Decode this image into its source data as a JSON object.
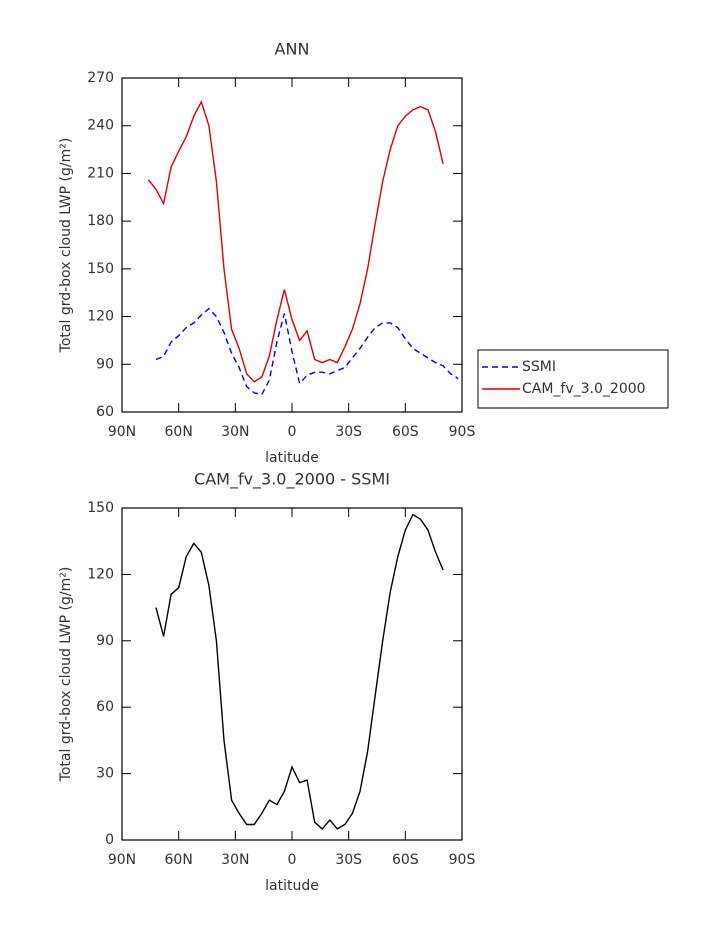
{
  "chart_data": [
    {
      "type": "line",
      "title": "ANN",
      "xlabel": "latitude",
      "ylabel": "Total grd-box cloud LWP (g/m²)",
      "x": [
        76,
        72,
        68,
        64,
        60,
        56,
        52,
        48,
        44,
        40,
        36,
        32,
        28,
        24,
        20,
        16,
        12,
        8,
        4,
        0,
        -4,
        -8,
        -12,
        -16,
        -20,
        -24,
        -28,
        -32,
        -36,
        -40,
        -44,
        -48,
        -52,
        -56,
        -60,
        -64,
        -68,
        -72,
        -76,
        -80,
        -84,
        -88
      ],
      "xlim": [
        90,
        -90
      ],
      "xticks": [
        {
          "value": 90,
          "label": "90N"
        },
        {
          "value": 60,
          "label": "60N"
        },
        {
          "value": 30,
          "label": "30N"
        },
        0,
        {
          "value": -30,
          "label": "30S"
        },
        {
          "value": -60,
          "label": "60S"
        },
        {
          "value": -90,
          "label": "90S"
        }
      ],
      "ylim": [
        60,
        270
      ],
      "yticks": [
        60,
        90,
        120,
        150,
        180,
        210,
        240,
        270
      ],
      "legend": "right",
      "series": [
        {
          "name": "SSMI",
          "color": "#0000ff",
          "dashed": true,
          "values": [
            null,
            93,
            95,
            104,
            108,
            113,
            116,
            121,
            125,
            120,
            110,
            97,
            88,
            76,
            72,
            71,
            80,
            104,
            122,
            98,
            78,
            83,
            85,
            85,
            84,
            86,
            88,
            94,
            100,
            107,
            113,
            116,
            116,
            113,
            106,
            100,
            97,
            94,
            91,
            89,
            84,
            81
          ]
        },
        {
          "name": "CAM_fv_3.0_2000",
          "color": "#e00000",
          "dashed": false,
          "values": [
            206,
            200,
            191,
            214,
            224,
            233,
            246,
            255,
            240,
            205,
            150,
            112,
            100,
            84,
            79,
            82,
            95,
            118,
            137,
            118,
            105,
            111,
            93,
            91,
            93,
            91,
            101,
            112,
            128,
            150,
            178,
            205,
            225,
            240,
            246,
            250,
            252,
            250,
            236,
            216,
            null,
            null
          ]
        }
      ]
    },
    {
      "type": "line",
      "title": "CAM_fv_3.0_2000 - SSMI",
      "xlabel": "latitude",
      "ylabel": "Total grd-box cloud LWP (g/m²)",
      "x": [
        76,
        72,
        68,
        64,
        60,
        56,
        52,
        48,
        44,
        40,
        36,
        32,
        28,
        24,
        20,
        16,
        12,
        8,
        4,
        0,
        -4,
        -8,
        -12,
        -16,
        -20,
        -24,
        -28,
        -32,
        -36,
        -40,
        -44,
        -48,
        -52,
        -56,
        -60,
        -64,
        -68,
        -72,
        -76,
        -80,
        -84,
        -88
      ],
      "xlim": [
        90,
        -90
      ],
      "xticks": [
        {
          "value": 90,
          "label": "90N"
        },
        {
          "value": 60,
          "label": "60N"
        },
        {
          "value": 30,
          "label": "30N"
        },
        0,
        {
          "value": -30,
          "label": "30S"
        },
        {
          "value": -60,
          "label": "60S"
        },
        {
          "value": -90,
          "label": "90S"
        }
      ],
      "ylim": [
        0,
        150
      ],
      "yticks": [
        0,
        30,
        60,
        90,
        120,
        150
      ],
      "series": [
        {
          "color": "#000000",
          "dashed": false,
          "values": [
            null,
            105,
            92,
            111,
            114,
            128,
            134,
            130,
            115,
            90,
            45,
            18,
            12,
            7,
            7,
            12,
            18,
            16,
            22,
            33,
            26,
            27,
            8,
            5,
            9,
            5,
            7,
            12,
            22,
            40,
            65,
            90,
            112,
            128,
            140,
            147,
            145,
            140,
            130,
            122,
            null,
            null
          ]
        }
      ]
    }
  ]
}
